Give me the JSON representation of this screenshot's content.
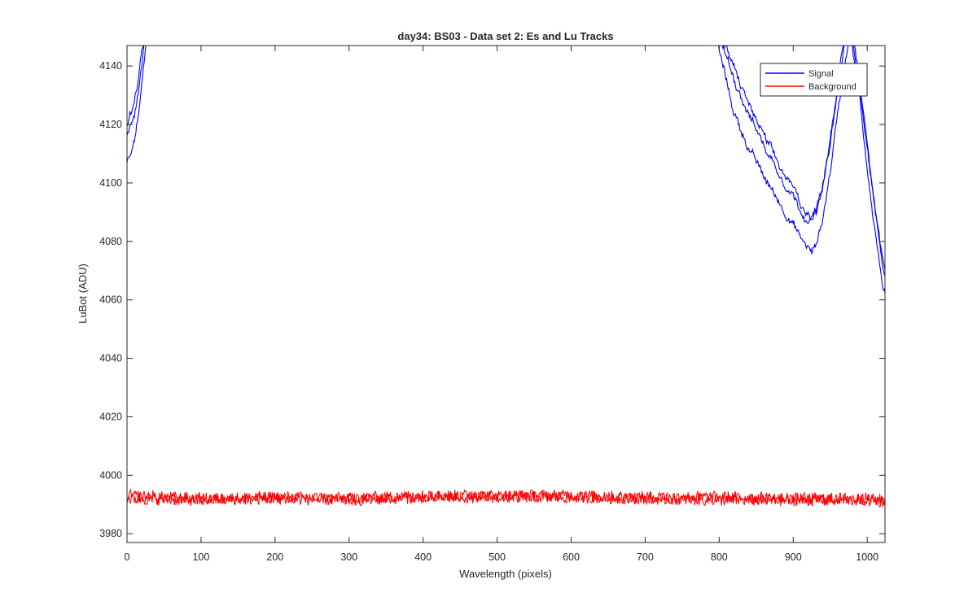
{
  "chart_data": {
    "type": "line",
    "title": "day34: BS03 - Data set 2: Es and Lu Tracks",
    "xlabel": "Wavelength (pixels)",
    "ylabel": "LuBot (ADU)",
    "xlim": [
      0,
      1024
    ],
    "ylim": [
      3977,
      4147
    ],
    "xticks": [
      0,
      100,
      200,
      300,
      400,
      500,
      600,
      700,
      800,
      900,
      1000
    ],
    "yticks": [
      3980,
      4000,
      4020,
      4040,
      4060,
      4080,
      4100,
      4120,
      4140
    ],
    "grid": false,
    "legend": {
      "position": "top-right",
      "entries": [
        "Signal",
        "Background"
      ]
    },
    "colors": {
      "Signal": "#0000ff",
      "Background": "#ff0000",
      "axes": "#262626"
    },
    "series": [
      {
        "name": "Signal",
        "color": "#0000ff",
        "tracks": [
          {
            "x": [
              0,
              5,
              10,
              15,
              20,
              25,
              30,
              790,
              800,
              820,
              840,
              860,
              880,
              900,
              910,
              920,
              925,
              930,
              940,
              950,
              960,
              970,
              975,
              980,
              990,
              1000,
              1010,
              1020,
              1024
            ],
            "y": [
              4107,
              4109,
              4114,
              4122,
              4133,
              4145,
              4155,
              4160,
              4145,
              4124,
              4112,
              4102,
              4094,
              4086,
              4081,
              4078,
              4076,
              4078,
              4088,
              4104,
              4124,
              4142,
              4150,
              4147,
              4128,
              4105,
              4085,
              4066,
              4062
            ]
          },
          {
            "x": [
              0,
              5,
              10,
              15,
              20,
              25,
              30,
              790,
              800,
              820,
              840,
              860,
              880,
              900,
              910,
              920,
              925,
              930,
              940,
              950,
              960,
              970,
              975,
              980,
              990,
              1000,
              1010,
              1020,
              1024
            ],
            "y": [
              4115,
              4119,
              4124,
              4132,
              4142,
              4152,
              4160,
              4162,
              4150,
              4136,
              4124,
              4113,
              4104,
              4096,
              4091,
              4088,
              4087,
              4089,
              4098,
              4113,
              4131,
              4148,
              4153,
              4150,
              4133,
              4112,
              4092,
              4073,
              4068
            ]
          },
          {
            "x": [
              0,
              5,
              10,
              15,
              20,
              25,
              30,
              790,
              800,
              820,
              840,
              860,
              880,
              900,
              910,
              920,
              925,
              930,
              940,
              950,
              960,
              970,
              975,
              980,
              990,
              1000,
              1010,
              1020,
              1024
            ],
            "y": [
              4120,
              4124,
              4129,
              4136,
              4145,
              4154,
              4162,
              4163,
              4152,
              4139,
              4127,
              4116,
              4106,
              4098,
              4093,
              4090,
              4088,
              4090,
              4100,
              4116,
              4134,
              4150,
              4155,
              4151,
              4135,
              4114,
              4094,
              4076,
              4070
            ]
          }
        ]
      },
      {
        "name": "Background",
        "color": "#ff0000",
        "tracks": [
          {
            "x": [
              0,
              100,
              200,
              300,
              400,
              500,
              600,
              700,
              800,
              900,
              1000,
              1024
            ],
            "y": [
              3993,
              3992,
              3992.5,
              3992,
              3993,
              3993,
              3993,
              3992.5,
              3992.5,
              3992,
              3992,
              3991.5
            ]
          },
          {
            "x": [
              0,
              100,
              200,
              300,
              400,
              500,
              600,
              700,
              800,
              900,
              1000,
              1024
            ],
            "y": [
              3992,
              3991.5,
              3992,
              3991.5,
              3992.5,
              3992.5,
              3992.5,
              3992,
              3991.5,
              3991.5,
              3991.5,
              3991
            ]
          }
        ]
      }
    ]
  }
}
